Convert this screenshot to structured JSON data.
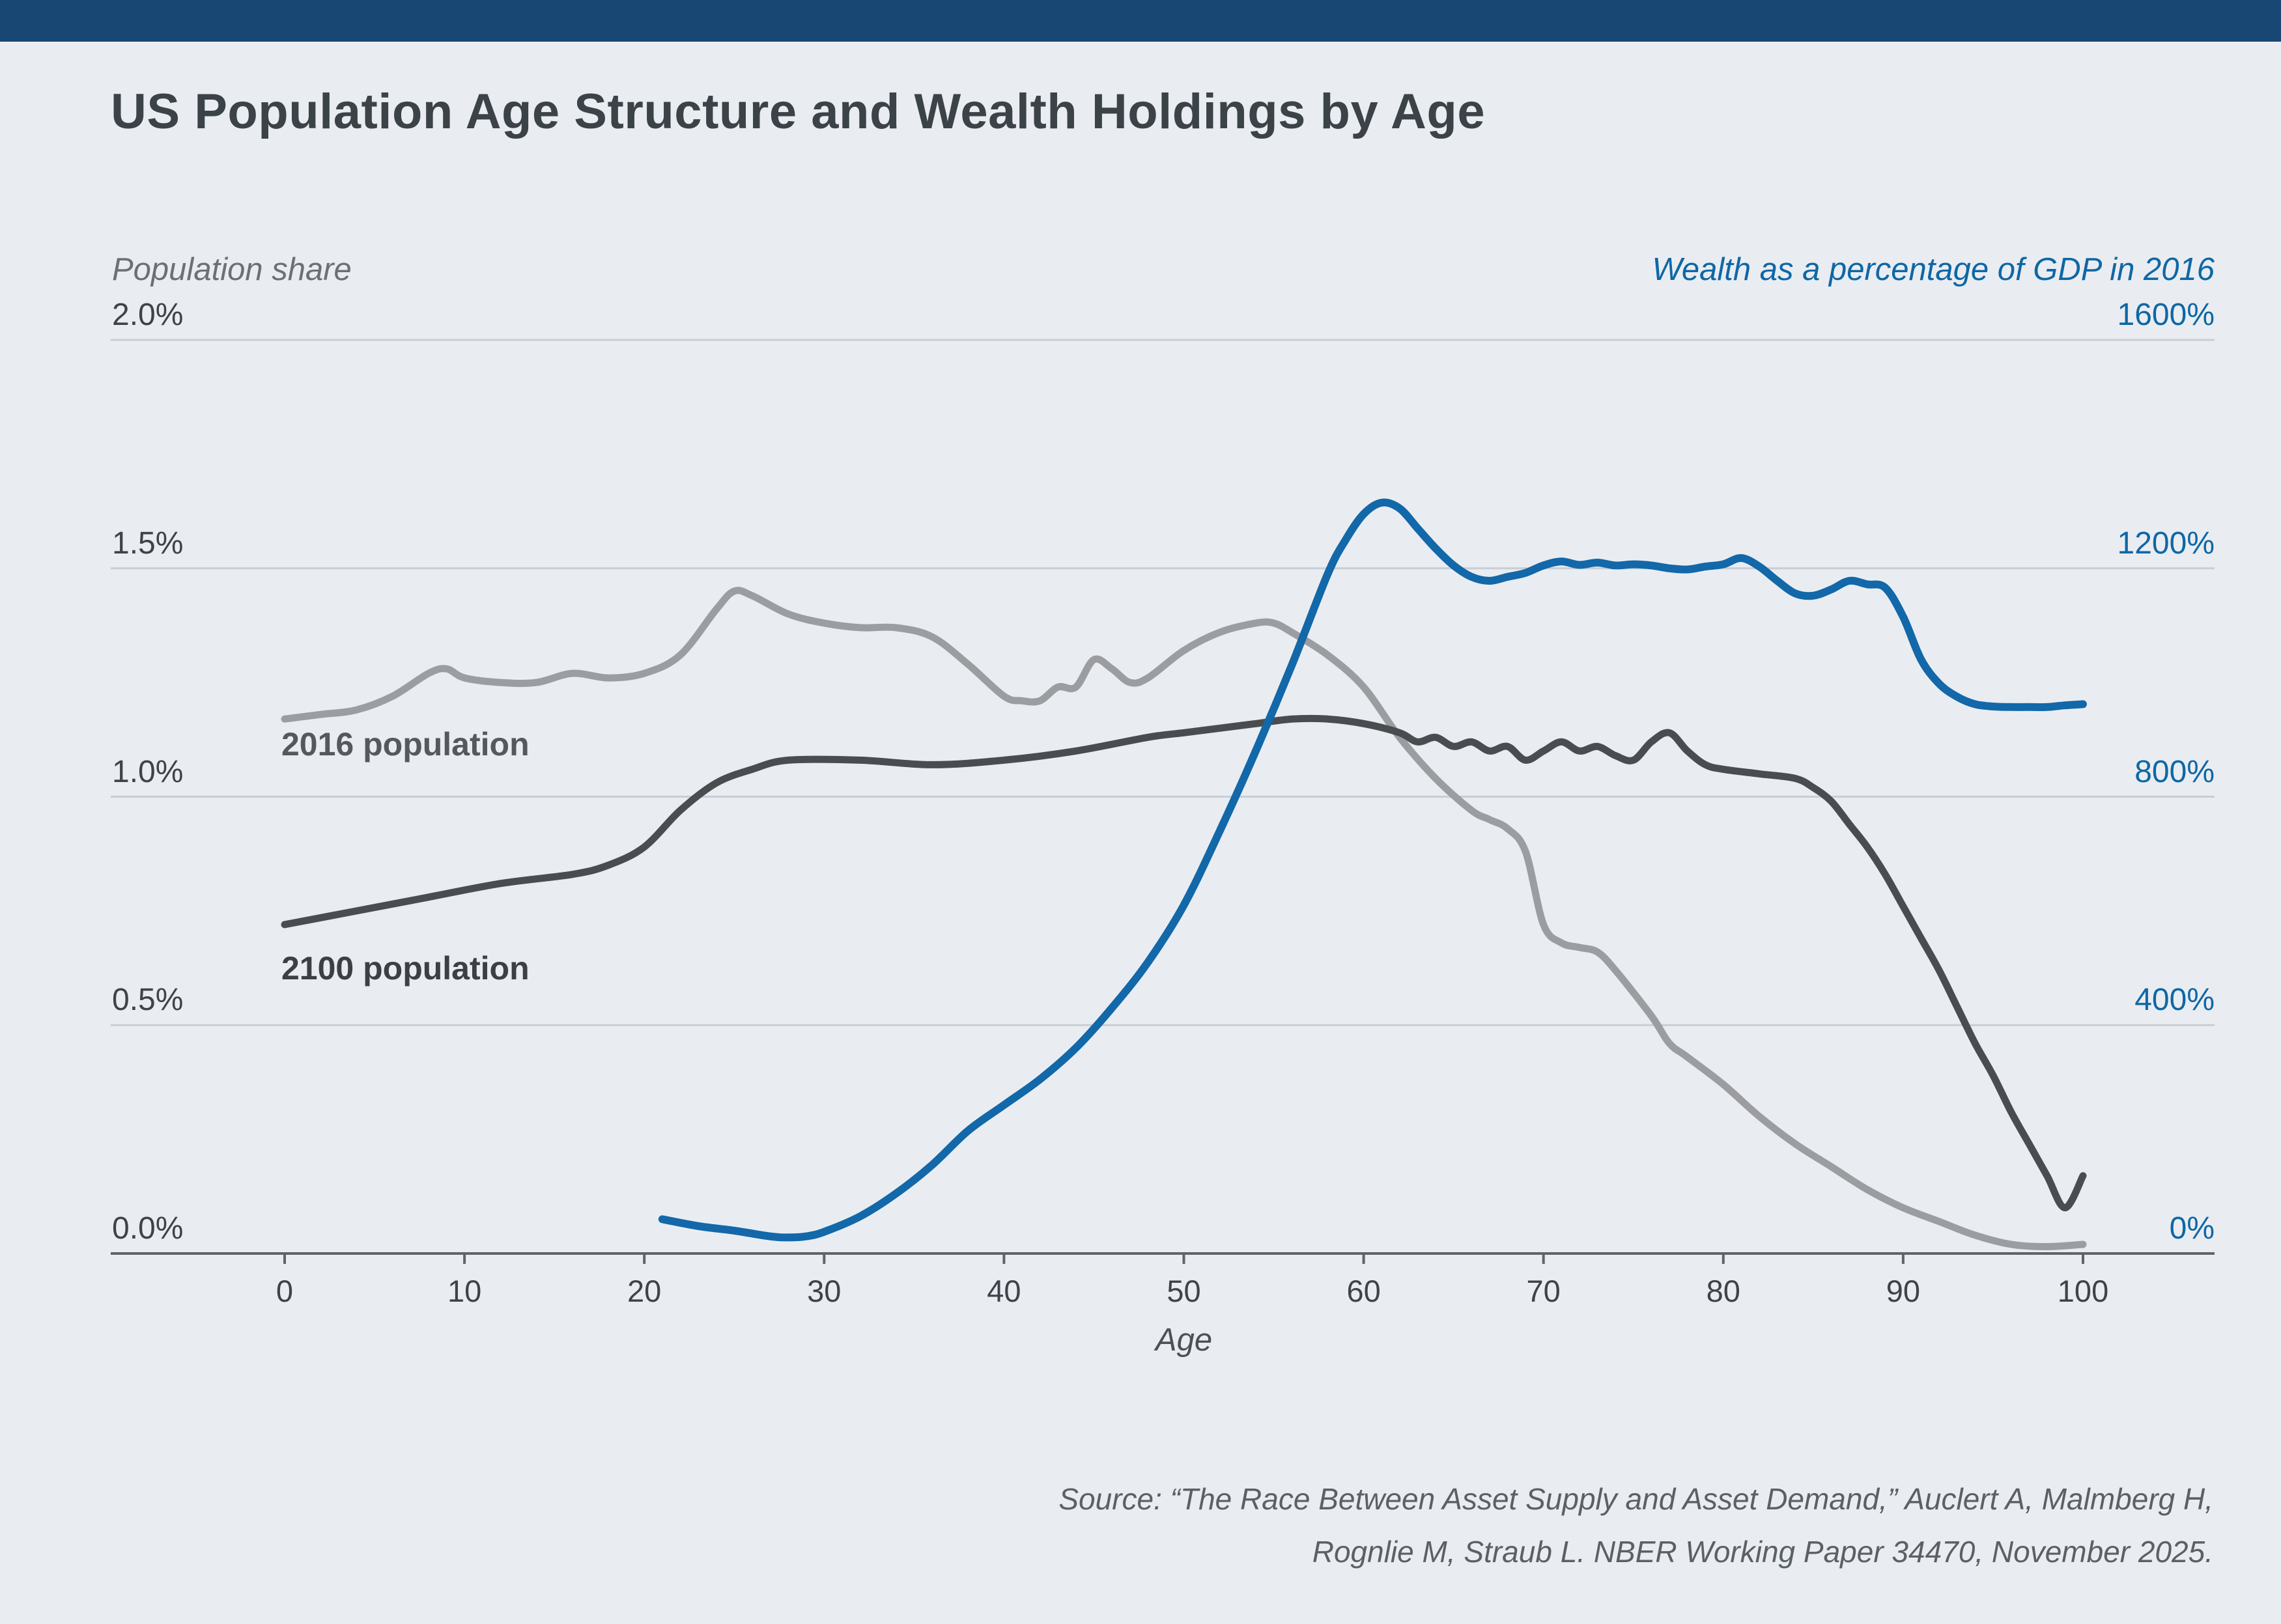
{
  "page": {
    "title": "US Population Age Structure and Wealth Holdings by Age",
    "source_line1": "Source: “The Race Between Asset Supply and Asset Demand,” Auclert A, Malmberg H,",
    "source_line2": "Rognlie M, Straub L. NBER Working Paper 34470, November 2025.",
    "colors": {
      "background": "#e9edf2",
      "top_bar": "#174772",
      "blue_accent": "#1268a8",
      "gray_series": "#9b9da0",
      "dark_series": "#4a4d50",
      "gridline": "#c7ced5",
      "axis_line": "#5f646a"
    }
  },
  "chart_data": {
    "type": "line",
    "title": "US Population Age Structure and Wealth Holdings by Age",
    "left_axis": {
      "label": "Population share",
      "tick_labels": [
        "2.0%",
        "1.5%",
        "1.0%",
        "0.5%",
        "0.0%"
      ],
      "tick_values": [
        2.0,
        1.5,
        1.0,
        0.5,
        0.0
      ],
      "range": [
        0,
        2.0
      ]
    },
    "right_axis": {
      "label": "Wealth as a percentage of GDP in 2016",
      "tick_labels": [
        "1600%",
        "1200%",
        "800%",
        "400%",
        "0%"
      ],
      "tick_values": [
        1600,
        1200,
        800,
        400,
        0
      ],
      "range": [
        0,
        1600
      ]
    },
    "x_axis": {
      "label": "Age",
      "tick_values": [
        0,
        10,
        20,
        30,
        40,
        50,
        60,
        70,
        80,
        90,
        100
      ],
      "range": [
        0,
        100
      ]
    },
    "series": [
      {
        "name": "2016 population",
        "axis": "left",
        "color": "#9b9da0",
        "stroke_width": 11,
        "x": [
          0,
          2,
          4,
          6,
          8,
          9,
          10,
          12,
          14,
          16,
          18,
          20,
          22,
          24,
          25,
          26,
          28,
          30,
          32,
          34,
          36,
          38,
          40,
          41,
          42,
          43,
          44,
          45,
          46,
          47,
          48,
          50,
          52,
          54,
          55,
          56,
          58,
          60,
          62,
          64,
          66,
          67,
          68,
          69,
          70,
          71,
          72,
          73,
          74,
          76,
          77,
          78,
          80,
          82,
          84,
          86,
          88,
          90,
          92,
          94,
          96,
          98,
          100
        ],
        "y": [
          1.17,
          1.18,
          1.19,
          1.22,
          1.27,
          1.28,
          1.26,
          1.25,
          1.25,
          1.27,
          1.26,
          1.27,
          1.31,
          1.41,
          1.45,
          1.44,
          1.4,
          1.38,
          1.37,
          1.37,
          1.35,
          1.29,
          1.22,
          1.21,
          1.21,
          1.24,
          1.24,
          1.3,
          1.28,
          1.25,
          1.26,
          1.32,
          1.36,
          1.38,
          1.38,
          1.36,
          1.31,
          1.24,
          1.13,
          1.04,
          0.97,
          0.95,
          0.93,
          0.88,
          0.72,
          0.68,
          0.67,
          0.66,
          0.62,
          0.52,
          0.46,
          0.43,
          0.37,
          0.3,
          0.24,
          0.19,
          0.14,
          0.1,
          0.07,
          0.04,
          0.02,
          0.015,
          0.02
        ]
      },
      {
        "name": "2100 population",
        "axis": "left",
        "color": "#4a4d50",
        "stroke_width": 11,
        "x": [
          0,
          4,
          8,
          12,
          16,
          18,
          20,
          22,
          24,
          26,
          28,
          32,
          36,
          40,
          44,
          48,
          50,
          52,
          54,
          56,
          58,
          60,
          62,
          63,
          64,
          65,
          66,
          67,
          68,
          69,
          70,
          71,
          72,
          73,
          74,
          75,
          76,
          77,
          78,
          79,
          80,
          82,
          84,
          85,
          86,
          87,
          88,
          89,
          90,
          91,
          92,
          93,
          94,
          95,
          96,
          97,
          98,
          99,
          100
        ],
        "y": [
          0.72,
          0.75,
          0.78,
          0.81,
          0.83,
          0.85,
          0.89,
          0.97,
          1.03,
          1.06,
          1.08,
          1.08,
          1.07,
          1.08,
          1.1,
          1.13,
          1.14,
          1.15,
          1.16,
          1.17,
          1.17,
          1.16,
          1.14,
          1.12,
          1.13,
          1.11,
          1.12,
          1.1,
          1.11,
          1.08,
          1.1,
          1.12,
          1.1,
          1.11,
          1.09,
          1.08,
          1.12,
          1.14,
          1.1,
          1.07,
          1.06,
          1.05,
          1.04,
          1.02,
          0.99,
          0.94,
          0.89,
          0.83,
          0.76,
          0.69,
          0.62,
          0.54,
          0.46,
          0.39,
          0.31,
          0.24,
          0.17,
          0.1,
          0.17
        ]
      },
      {
        "name": "Wealth as a percentage of GDP in 2016",
        "axis": "right",
        "color": "#1268a8",
        "stroke_width": 12,
        "x": [
          21,
          23,
          25,
          27,
          28,
          29,
          30,
          32,
          34,
          36,
          38,
          40,
          42,
          44,
          46,
          48,
          50,
          52,
          54,
          56,
          58,
          59,
          60,
          61,
          62,
          63,
          64,
          65,
          66,
          67,
          68,
          69,
          70,
          71,
          72,
          73,
          74,
          75,
          76,
          77,
          78,
          79,
          80,
          81,
          82,
          83,
          84,
          85,
          86,
          87,
          88,
          89,
          90,
          91,
          92,
          93,
          94,
          95,
          96,
          97,
          98,
          99,
          100
        ],
        "y": [
          60,
          48,
          40,
          30,
          28,
          30,
          38,
          65,
          105,
          155,
          215,
          260,
          305,
          360,
          430,
          510,
          610,
          740,
          880,
          1030,
          1190,
          1250,
          1295,
          1315,
          1305,
          1270,
          1235,
          1205,
          1185,
          1178,
          1185,
          1192,
          1205,
          1212,
          1206,
          1210,
          1205,
          1207,
          1205,
          1200,
          1198,
          1203,
          1207,
          1218,
          1203,
          1178,
          1156,
          1152,
          1163,
          1178,
          1172,
          1166,
          1115,
          1040,
          998,
          975,
          962,
          958,
          957,
          957,
          957,
          960,
          962
        ]
      }
    ],
    "series_inline_labels": [
      {
        "text": "2016 population"
      },
      {
        "text": "2100 population"
      }
    ],
    "legend_position": "inline",
    "grid": true
  }
}
